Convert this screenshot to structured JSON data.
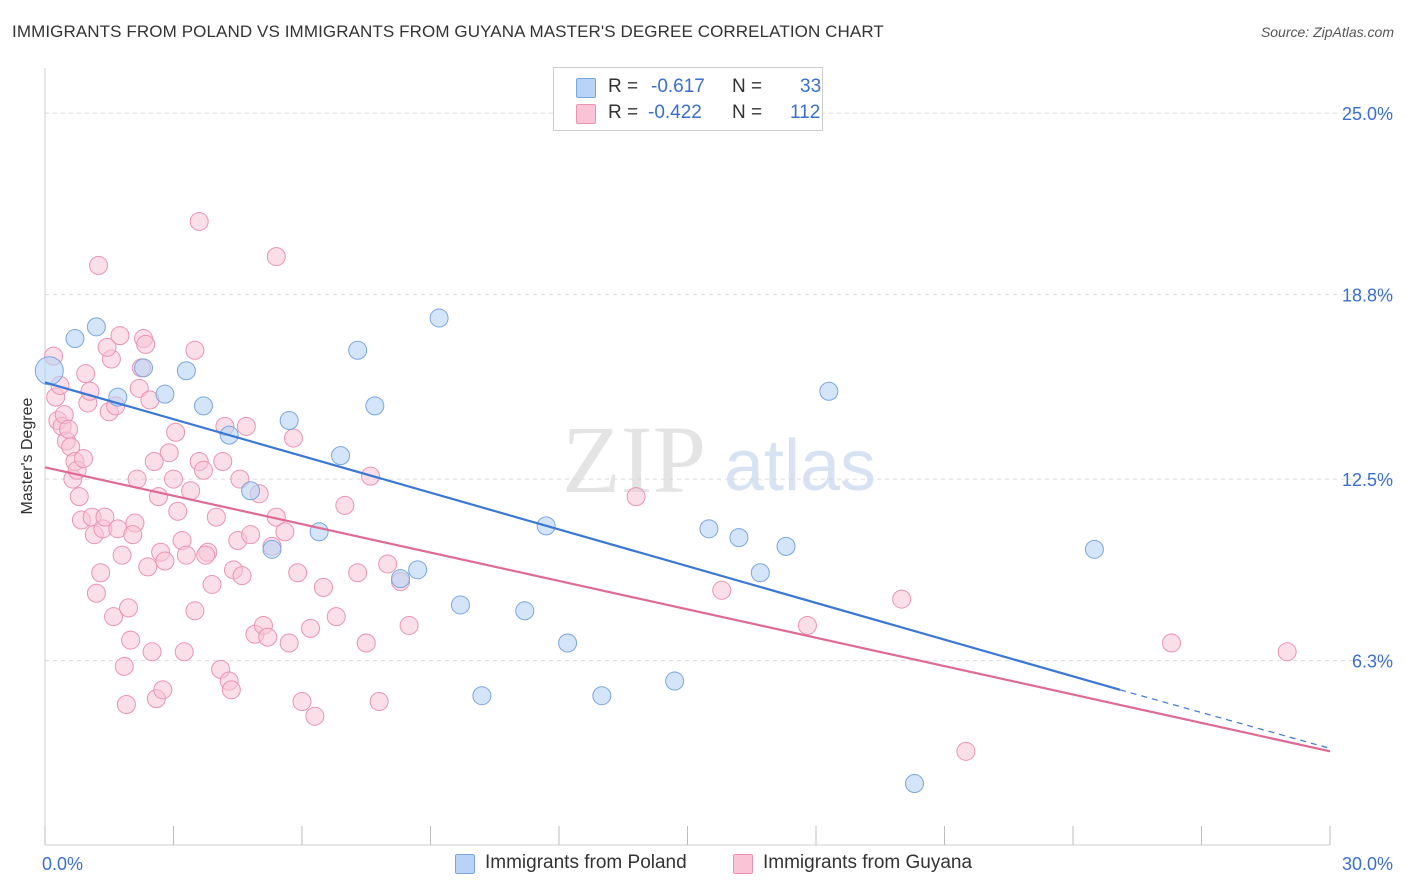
{
  "title": "IMMIGRANTS FROM POLAND VS IMMIGRANTS FROM GUYANA MASTER'S DEGREE CORRELATION CHART",
  "source": "Source: ZipAtlas.com",
  "watermark": {
    "zip": "ZIP",
    "atlas": "atlas"
  },
  "legend": {
    "r_label": "R =",
    "n_label": "N =",
    "rows": [
      {
        "r": "-0.617",
        "n": "33"
      },
      {
        "r": "-0.422",
        "n": "112"
      }
    ]
  },
  "colors": {
    "poland_fill": "#b8d3f5",
    "poland_stroke": "#7aa6e0",
    "poland_line": "#3a78d4",
    "guyana_fill": "#f8c4d6",
    "guyana_stroke": "#eb93b1",
    "guyana_line": "#e06a96",
    "tick_label": "#3a6fd0",
    "grid": "#dcdcdc"
  },
  "chart_data": {
    "type": "scatter",
    "title": "IMMIGRANTS FROM POLAND VS IMMIGRANTS FROM GUYANA MASTER'S DEGREE CORRELATION CHART",
    "xlabel": "",
    "ylabel": "Master's Degree",
    "xlim": [
      0,
      30
    ],
    "ylim": [
      0,
      26.2
    ],
    "x_tick_labels": [
      "0.0%",
      "30.0%"
    ],
    "y_ticks": [
      6.3,
      12.5,
      18.8,
      25.0
    ],
    "y_tick_labels": [
      "6.3%",
      "12.5%",
      "18.8%",
      "25.0%"
    ],
    "grid": "horizontal dashed",
    "legend_position": "bottom-center",
    "series": [
      {
        "name": "Immigrants from Poland",
        "points": [
          [
            0.1,
            16.2
          ],
          [
            0.7,
            17.3
          ],
          [
            1.2,
            17.7
          ],
          [
            1.7,
            15.3
          ],
          [
            2.3,
            16.3
          ],
          [
            2.8,
            15.4
          ],
          [
            3.3,
            16.2
          ],
          [
            3.7,
            15.0
          ],
          [
            4.3,
            14.0
          ],
          [
            4.8,
            12.1
          ],
          [
            5.3,
            10.1
          ],
          [
            5.7,
            14.5
          ],
          [
            6.4,
            10.7
          ],
          [
            6.9,
            13.3
          ],
          [
            7.3,
            16.9
          ],
          [
            7.7,
            15.0
          ],
          [
            8.3,
            9.1
          ],
          [
            8.7,
            9.4
          ],
          [
            9.2,
            18.0
          ],
          [
            9.7,
            8.2
          ],
          [
            10.2,
            5.1
          ],
          [
            11.2,
            8.0
          ],
          [
            11.7,
            10.9
          ],
          [
            12.2,
            6.9
          ],
          [
            13.0,
            5.1
          ],
          [
            14.7,
            5.6
          ],
          [
            15.5,
            10.8
          ],
          [
            16.2,
            10.5
          ],
          [
            16.7,
            9.3
          ],
          [
            17.3,
            10.2
          ],
          [
            18.3,
            15.5
          ],
          [
            20.3,
            2.1
          ],
          [
            24.5,
            10.1
          ]
        ],
        "trend": {
          "x": [
            0,
            25.1
          ],
          "y": [
            15.8,
            5.3
          ]
        },
        "trend_dashed": {
          "x": [
            25.1,
            30.0
          ],
          "y": [
            5.3,
            3.3
          ]
        }
      },
      {
        "name": "Immigrants from Guyana",
        "points": [
          [
            0.2,
            16.7
          ],
          [
            0.25,
            15.3
          ],
          [
            0.3,
            14.5
          ],
          [
            0.4,
            14.3
          ],
          [
            0.45,
            14.7
          ],
          [
            0.5,
            13.8
          ],
          [
            0.55,
            14.2
          ],
          [
            0.6,
            13.6
          ],
          [
            0.65,
            12.5
          ],
          [
            0.7,
            13.1
          ],
          [
            0.75,
            12.8
          ],
          [
            0.8,
            11.9
          ],
          [
            0.85,
            11.1
          ],
          [
            0.9,
            13.2
          ],
          [
            1.0,
            15.1
          ],
          [
            1.05,
            15.5
          ],
          [
            1.1,
            11.2
          ],
          [
            1.15,
            10.6
          ],
          [
            1.2,
            8.6
          ],
          [
            1.3,
            9.3
          ],
          [
            1.35,
            10.8
          ],
          [
            1.4,
            11.2
          ],
          [
            1.5,
            14.8
          ],
          [
            1.55,
            16.6
          ],
          [
            1.6,
            7.8
          ],
          [
            1.7,
            10.8
          ],
          [
            1.8,
            9.9
          ],
          [
            1.85,
            6.1
          ],
          [
            1.9,
            4.8
          ],
          [
            2.0,
            7.0
          ],
          [
            2.1,
            11.0
          ],
          [
            2.15,
            12.5
          ],
          [
            2.2,
            15.6
          ],
          [
            2.25,
            16.3
          ],
          [
            2.3,
            17.3
          ],
          [
            2.35,
            17.1
          ],
          [
            2.4,
            9.5
          ],
          [
            2.5,
            6.6
          ],
          [
            2.6,
            5.0
          ],
          [
            2.7,
            10.0
          ],
          [
            2.8,
            9.7
          ],
          [
            2.9,
            13.4
          ],
          [
            3.0,
            12.5
          ],
          [
            3.1,
            11.4
          ],
          [
            3.2,
            10.4
          ],
          [
            3.3,
            9.9
          ],
          [
            3.4,
            12.1
          ],
          [
            3.5,
            8.0
          ],
          [
            3.6,
            13.1
          ],
          [
            3.7,
            12.8
          ],
          [
            3.8,
            10.0
          ],
          [
            3.9,
            8.9
          ],
          [
            4.0,
            11.2
          ],
          [
            4.1,
            6.0
          ],
          [
            4.2,
            14.3
          ],
          [
            4.3,
            5.6
          ],
          [
            4.4,
            9.4
          ],
          [
            4.5,
            10.4
          ],
          [
            4.6,
            9.2
          ],
          [
            4.7,
            14.3
          ],
          [
            4.8,
            10.6
          ],
          [
            4.9,
            7.2
          ],
          [
            5.0,
            12.0
          ],
          [
            5.1,
            7.5
          ],
          [
            5.3,
            10.2
          ],
          [
            5.4,
            11.2
          ],
          [
            5.6,
            10.7
          ],
          [
            5.7,
            6.9
          ],
          [
            5.8,
            13.9
          ],
          [
            5.9,
            9.3
          ],
          [
            6.0,
            4.9
          ],
          [
            6.2,
            7.4
          ],
          [
            6.5,
            8.8
          ],
          [
            6.8,
            7.8
          ],
          [
            7.0,
            11.6
          ],
          [
            7.3,
            9.3
          ],
          [
            7.5,
            6.9
          ],
          [
            7.8,
            4.9
          ],
          [
            8.0,
            9.6
          ],
          [
            8.3,
            9.0
          ],
          [
            1.25,
            19.8
          ],
          [
            3.6,
            21.3
          ],
          [
            5.4,
            20.1
          ],
          [
            0.95,
            16.1
          ],
          [
            1.45,
            17.0
          ],
          [
            1.75,
            17.4
          ],
          [
            2.45,
            15.2
          ],
          [
            2.55,
            13.1
          ],
          [
            3.05,
            14.1
          ],
          [
            3.5,
            16.9
          ],
          [
            1.65,
            15.0
          ],
          [
            0.35,
            15.7
          ],
          [
            4.15,
            13.1
          ],
          [
            4.55,
            12.5
          ],
          [
            2.65,
            11.9
          ],
          [
            3.75,
            9.9
          ],
          [
            2.05,
            10.6
          ],
          [
            1.95,
            8.1
          ],
          [
            2.75,
            5.3
          ],
          [
            3.25,
            6.6
          ],
          [
            4.35,
            5.3
          ],
          [
            5.2,
            7.1
          ],
          [
            6.3,
            4.4
          ],
          [
            7.6,
            12.6
          ],
          [
            8.5,
            7.5
          ],
          [
            13.8,
            11.9
          ],
          [
            15.8,
            8.7
          ],
          [
            17.8,
            7.5
          ],
          [
            20.0,
            8.4
          ],
          [
            21.5,
            3.2
          ],
          [
            26.3,
            6.9
          ],
          [
            29.0,
            6.6
          ]
        ],
        "trend": {
          "x": [
            0,
            30.0
          ],
          "y": [
            12.9,
            3.2
          ]
        }
      }
    ]
  }
}
